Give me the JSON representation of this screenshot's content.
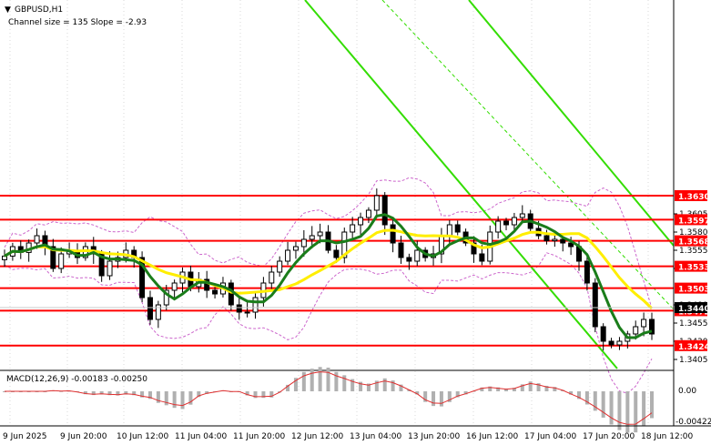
{
  "header": {
    "symbol_label": "GBPUSD,H1",
    "indicator_text": "Channel size = 135 Slope = -2.93"
  },
  "macd": {
    "label": "MACD(12,26,9) -0.00183 -0.00250",
    "axis_labels": [
      "0.00",
      "-0.00422"
    ]
  },
  "colors": {
    "level_line": "#ff0000",
    "label_bg": "#ff0000",
    "candle": "#000000",
    "ma_fast": "#1a7d1a",
    "ma_slow": "#ffee00",
    "channel": "#33dd00",
    "bollinger": "#cc66cc",
    "macd_hist": "#b0b0b0",
    "macd_signal": "#e03030"
  },
  "price_axis": {
    "ticks": [
      "1.3605",
      "1.3580",
      "1.3555",
      "1.3530",
      "1.3480",
      "1.3455",
      "1.3430",
      "1.3405"
    ],
    "levels": [
      "1.3630",
      "1.3597",
      "1.3568",
      "1.3533",
      "1.3503",
      "1.3472",
      "1.3424"
    ],
    "current_price": "1.3440"
  },
  "time_axis": {
    "labels": [
      "9 Jun 2025",
      "9 Jun 20:00",
      "10 Jun 12:00",
      "11 Jun 04:00",
      "11 Jun 20:00",
      "12 Jun 12:00",
      "13 Jun 04:00",
      "13 Jun 20:00",
      "16 Jun 12:00",
      "17 Jun 04:00",
      "17 Jun 20:00",
      "18 Jun 12:00"
    ]
  },
  "chart_data": {
    "type": "candlestick",
    "symbol": "GBPUSD",
    "timeframe": "H1",
    "series": [
      {
        "values": [
          1.3547,
          1.356,
          1.3552,
          1.3565,
          1.3575,
          1.356,
          1.353,
          1.355,
          1.3555,
          1.3545,
          1.356,
          1.355,
          1.352,
          1.354,
          1.3545,
          1.3555,
          1.3545,
          1.349,
          1.346,
          1.348,
          1.35,
          1.351,
          1.3525,
          1.3505,
          1.3515,
          1.35,
          1.3495,
          1.351,
          1.348,
          1.347,
          1.347,
          1.349,
          1.351,
          1.3525,
          1.354,
          1.3555,
          1.356,
          1.357,
          1.3575,
          1.358,
          1.3555,
          1.3545,
          1.358,
          1.359,
          1.36,
          1.361,
          1.363,
          1.359,
          1.3565,
          1.3545,
          1.354,
          1.3555,
          1.3545,
          1.355,
          1.3575,
          1.359,
          1.358,
          1.3565,
          1.355,
          1.354,
          1.358,
          1.3595,
          1.359,
          1.36,
          1.3605,
          1.3585,
          1.3575,
          1.3568,
          1.357,
          1.3565,
          1.356,
          1.354,
          1.351,
          1.345,
          1.343,
          1.3425,
          1.343,
          1.344,
          1.345,
          1.346,
          1.344
        ]
      }
    ]
  }
}
